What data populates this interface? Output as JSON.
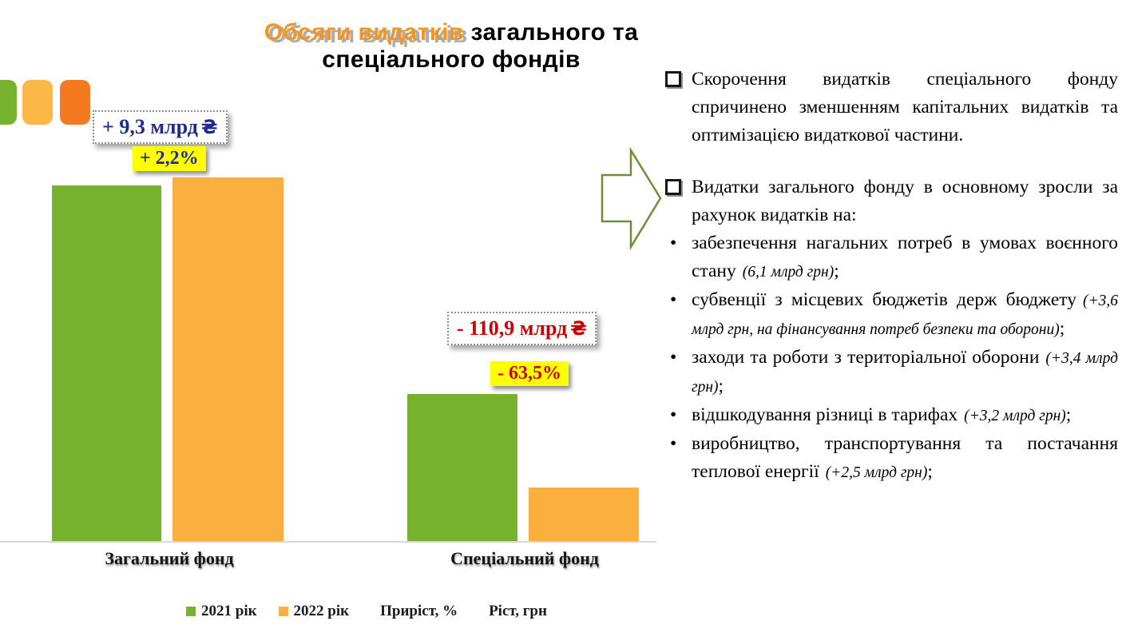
{
  "title": {
    "line1_highlight": "Обсяги видатків",
    "line1_rest": " загального та",
    "line2": "спеціального фондів"
  },
  "deco": {
    "colors": [
      "#76B22D",
      "#FBB847",
      "#F4791F"
    ]
  },
  "chart_data": {
    "type": "bar",
    "title": "Обсяги видатків загального та спеціального фондів",
    "unit": "млрд грн",
    "categories": [
      "Загальний фонд",
      "Спеціальний фонд"
    ],
    "series": [
      {
        "name": "2021 рік",
        "color": "#76B22D",
        "values": [
          423,
          175
        ]
      },
      {
        "name": "2022 рік",
        "color": "#FAAF3F",
        "values": [
          432,
          64
        ]
      }
    ],
    "annotations": [
      {
        "category": "Загальний фонд",
        "growth_uah": "+ 9,3 млрд",
        "currency": "₴",
        "growth_pct": "+ 2,2%"
      },
      {
        "category": "Спеціальний фонд",
        "growth_uah": "- 110,9 млрд",
        "currency": "₴",
        "growth_pct": "- 63,5%"
      }
    ],
    "legend_extra": [
      "Приріст, %",
      "Ріст, грн"
    ],
    "xlabel": "",
    "ylabel": "",
    "grid": false,
    "legend_position": "bottom"
  },
  "bullet_char": "•",
  "right_panel": {
    "checks": [
      {
        "text": "Скорочення видатків спеціального фонду спричинено зменшенням капітальних видатків та оптимізацією видаткової частини."
      },
      {
        "text": "Видатки загального фонду в основному зросли за рахунок видатків на:"
      }
    ],
    "bullets": [
      {
        "main": "забезпечення нагальних потреб в умовах воєнного стану",
        "note": "(6,1 млрд грн)",
        "tail": ";"
      },
      {
        "main": "субвенції з місцевих бюджетів держ бюджету",
        "note": "(+3,6 млрд грн, на фінансування потреб безпеки та оборони)",
        "tail": ";"
      },
      {
        "main": "заходи та роботи з територіальної оборони",
        "note": "(+3,4 млрд грн)",
        "tail": ";"
      },
      {
        "main": "відшкодування різниці в тарифах",
        "note": "(+3,2 млрд грн)",
        "tail": ";"
      },
      {
        "main": "виробництво, транспортування та постачання теплової енергії",
        "note": "(+2,5 млрд грн)",
        "tail": ";"
      }
    ]
  }
}
